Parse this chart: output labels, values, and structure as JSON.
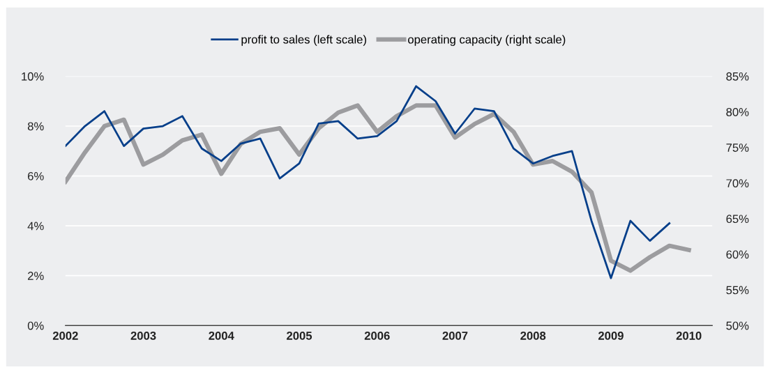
{
  "chart_data": {
    "type": "line",
    "x": [
      2002,
      2002.25,
      2002.5,
      2002.75,
      2003,
      2003.25,
      2003.5,
      2003.75,
      2004,
      2004.25,
      2004.5,
      2004.75,
      2005,
      2005.25,
      2005.5,
      2005.75,
      2006,
      2006.25,
      2006.5,
      2006.75,
      2007,
      2007.25,
      2007.5,
      2007.75,
      2008,
      2008.25,
      2008.5,
      2008.75,
      2009,
      2009.25,
      2009.5,
      2009.75,
      2010
    ],
    "series": [
      {
        "name": "profit to sales (left scale)",
        "color": "#063f8a",
        "values": [
          7.2,
          8.0,
          8.6,
          7.2,
          7.9,
          8.0,
          8.4,
          7.1,
          6.6,
          7.3,
          7.5,
          5.9,
          6.5,
          8.1,
          8.2,
          7.5,
          7.6,
          8.2,
          9.6,
          9.0,
          7.7,
          8.7,
          8.6,
          7.1,
          6.5,
          6.8,
          7.0,
          4.2,
          1.9,
          4.2,
          3.4,
          4.1,
          null
        ]
      },
      {
        "name": "operating capacity (right scale)",
        "color": "#9c9c9f",
        "axis": "y2",
        "values": [
          70.2,
          74.3,
          78.0,
          78.9,
          72.6,
          74.0,
          76.0,
          76.8,
          71.3,
          75.5,
          77.2,
          77.7,
          74.0,
          77.7,
          79.9,
          80.9,
          77.2,
          79.4,
          80.9,
          80.9,
          76.4,
          78.3,
          79.7,
          77.2,
          72.6,
          73.1,
          71.6,
          68.7,
          59.1,
          57.7,
          59.6,
          61.2,
          60.6
        ]
      }
    ],
    "xlim": [
      2002,
      2010.3
    ],
    "xticks": [
      2002,
      2003,
      2004,
      2005,
      2006,
      2007,
      2008,
      2009,
      2010
    ],
    "ylim": [
      0,
      10
    ],
    "yticks": [
      {
        "value": 0,
        "label": "0%"
      },
      {
        "value": 2,
        "label": "2%"
      },
      {
        "value": 4,
        "label": "4%"
      },
      {
        "value": 6,
        "label": "6%"
      },
      {
        "value": 8,
        "label": "8%"
      },
      {
        "value": 10,
        "label": "10%"
      }
    ],
    "y2lim": [
      50,
      85
    ],
    "y2ticks": [
      {
        "value": 50,
        "label": "50%"
      },
      {
        "value": 55,
        "label": "55%"
      },
      {
        "value": 60,
        "label": "60%"
      },
      {
        "value": 65,
        "label": "65%"
      },
      {
        "value": 70,
        "label": "70%"
      },
      {
        "value": 75,
        "label": "75%"
      },
      {
        "value": 80,
        "label": "80%"
      },
      {
        "value": 85,
        "label": "85%"
      }
    ],
    "grid": "y",
    "legend": "top",
    "line_style": "solid",
    "marker": "none"
  }
}
